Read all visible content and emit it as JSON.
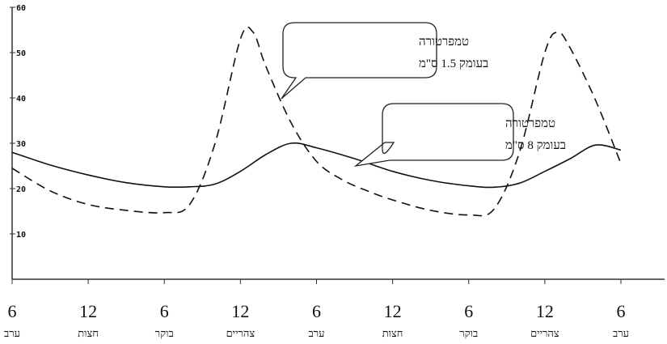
{
  "chart_data": {
    "type": "line",
    "title": "",
    "xlabel": "",
    "ylabel": "",
    "ylim": [
      0,
      60
    ],
    "yticks": [
      "60",
      "50",
      "40",
      "30",
      "20",
      "10"
    ],
    "xtick_numbers": [
      "6",
      "12",
      "6",
      "12",
      "6",
      "12",
      "6",
      "12",
      "6"
    ],
    "xtick_words": [
      "ערב",
      "חצות",
      "בוקר",
      "צהריים",
      "ערב",
      "חצות",
      "בוקר",
      "צהריים",
      "ערב"
    ],
    "x_hours": [
      0,
      6,
      12,
      18,
      24,
      30,
      36,
      42,
      48
    ],
    "grid": false,
    "series": [
      {
        "name": "טמפרטורה בעומק 8 ס\"מ",
        "style": "solid",
        "points": [
          [
            0,
            28
          ],
          [
            3,
            25.2
          ],
          [
            6,
            23
          ],
          [
            9,
            21.3
          ],
          [
            12,
            20.4
          ],
          [
            14,
            20.4
          ],
          [
            16,
            21
          ],
          [
            18,
            23.8
          ],
          [
            20,
            27.5
          ],
          [
            22,
            30
          ],
          [
            24,
            29
          ],
          [
            27,
            26.6
          ],
          [
            30,
            23.8
          ],
          [
            33,
            21.8
          ],
          [
            36,
            20.6
          ],
          [
            38,
            20.3
          ],
          [
            40,
            21.2
          ],
          [
            42,
            23.8
          ],
          [
            44,
            26.6
          ],
          [
            46,
            29.6
          ],
          [
            48,
            28.5
          ]
        ]
      },
      {
        "name": "טמפרטורה בעומק 1.5 ס\"מ",
        "style": "dashed",
        "points": [
          [
            0,
            24.5
          ],
          [
            3,
            19.5
          ],
          [
            6,
            16.5
          ],
          [
            9,
            15.2
          ],
          [
            12,
            14.7
          ],
          [
            14,
            16.5
          ],
          [
            16,
            30
          ],
          [
            18,
            53
          ],
          [
            19,
            54.5
          ],
          [
            20,
            47
          ],
          [
            22,
            34.5
          ],
          [
            24,
            26
          ],
          [
            26,
            22
          ],
          [
            28,
            19.5
          ],
          [
            30,
            17.5
          ],
          [
            33,
            15.2
          ],
          [
            36,
            14.2
          ],
          [
            38,
            15.5
          ],
          [
            40,
            28
          ],
          [
            42,
            50
          ],
          [
            43,
            54.5
          ],
          [
            44,
            51
          ],
          [
            46,
            39.5
          ],
          [
            48,
            25.5
          ]
        ]
      }
    ],
    "annotations": [
      {
        "line1": "טמפרטורה",
        "line2": "בעומק 1.5 ס\"מ",
        "series": 1
      },
      {
        "line1": "טמפרטורה",
        "line2": "בעומק 8 ס\"מ",
        "series": 0
      }
    ]
  }
}
